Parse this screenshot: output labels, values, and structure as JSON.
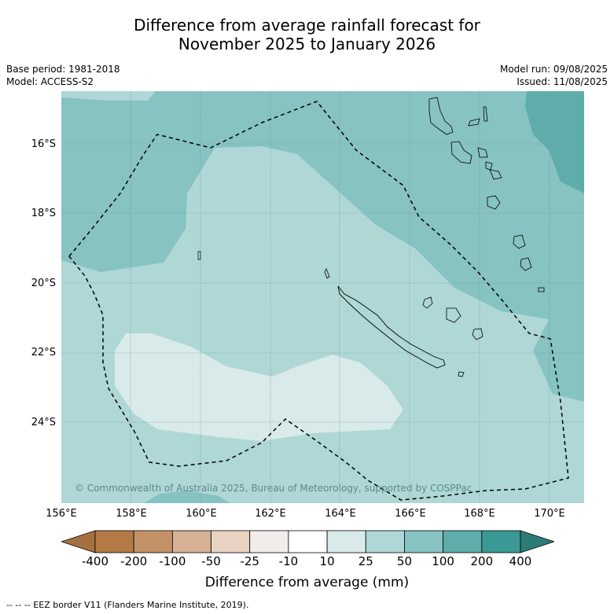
{
  "title_line1": "Difference from average rainfall forecast for",
  "title_line2": "November 2025 to January 2026",
  "base_period": "Base period: 1981-2018",
  "model": "Model: ACCESS-S2",
  "model_run": "Model run: 09/08/2025",
  "issued": "Issued: 11/08/2025",
  "copyright": "© Commonwealth of Australia 2025, Bureau of Meteorology, supported by COSPPac",
  "lat_labels": [
    "16°S",
    "18°S",
    "20°S",
    "22°S",
    "24°S"
  ],
  "lon_labels": [
    "156°E",
    "158°E",
    "160°E",
    "162°E",
    "164°E",
    "166°E",
    "168°E",
    "170°E"
  ],
  "colorbar": {
    "ticks": [
      "-400",
      "-200",
      "-100",
      "-50",
      "-25",
      "-10",
      "10",
      "25",
      "50",
      "100",
      "200",
      "400"
    ],
    "colors": [
      "#a5703f",
      "#b37a45",
      "#c49269",
      "#d6b196",
      "#e8d3c2",
      "#f2ecea",
      "#ffffff",
      "#d8eae9",
      "#aed7d6",
      "#86c3c1",
      "#5eadab",
      "#3a9994",
      "#2d7b78"
    ],
    "title": "Difference from average (mm)"
  },
  "footer": "-- -- -- EEZ border V11 (Flanders Marine Institute, 2019)."
}
